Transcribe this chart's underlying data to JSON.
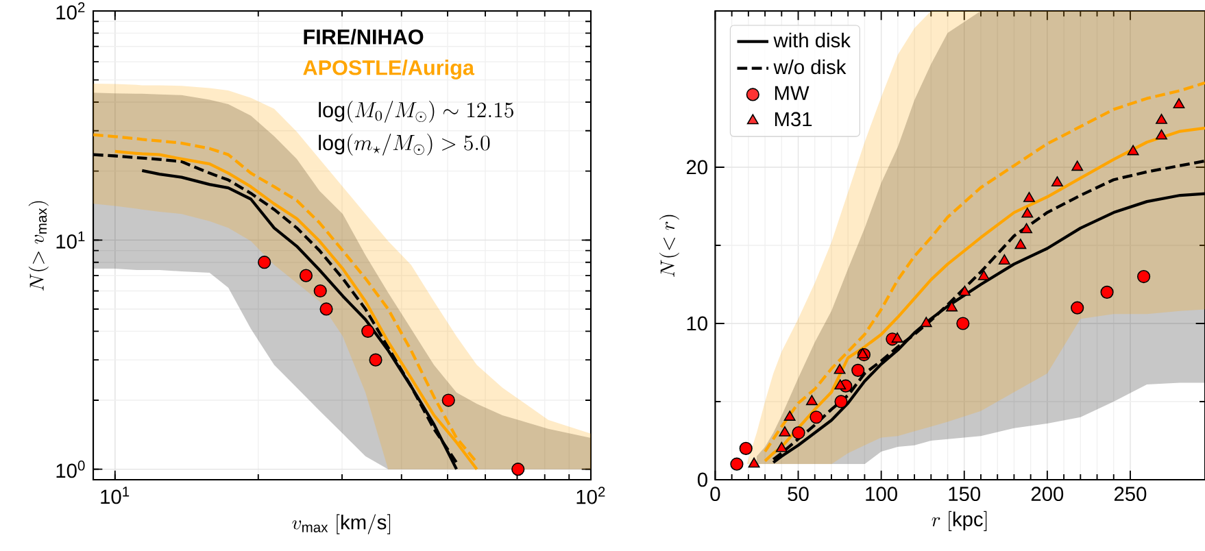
{
  "chart_data": [
    {
      "type": "line",
      "xlabel": "v_\\mathrm{max}\\ \\mathrm{[km/s]}",
      "ylabel": "N(>v_\\mathrm{max})",
      "log": "xy",
      "grid": true,
      "legend": false,
      "xlim": [
        9.0,
        100
      ],
      "ylim": [
        0.9,
        100
      ],
      "xticks": [
        {
          "value": 10,
          "label": "10$^{1}$"
        },
        {
          "value": 100,
          "label": "10$^{2}$"
        }
      ],
      "yticks": [
        {
          "value": 1,
          "label": "10$^{0}$"
        },
        {
          "value": 10,
          "label": "10$^{1}$"
        },
        {
          "value": 100,
          "label": "10$^{2}$"
        }
      ],
      "annotations": [
        "FIRE/NIHAO",
        "APOSTLE/Auriga",
        "\\log(M_0/M_\\odot)\\sim 12.15",
        "\\log(m_\\star/M_\\odot)>5.0"
      ],
      "x": [
        9.0,
        10.0,
        11.1,
        11.4,
        12.4,
        13.8,
        15.8,
        17.3,
        19.3,
        21.6,
        24.1,
        26.9,
        30.1,
        33.6,
        37.5,
        41.9,
        46.8,
        52.2,
        57.6,
        65.2,
        81.4,
        100
      ],
      "series": [
        {
          "color": "#000000",
          "line_style": "solid",
          "values": [
            null,
            null,
            null,
            20.1,
            19.4,
            18.8,
            17.5,
            16.9,
            15.1,
            11.3,
            9.4,
            7.4,
            5.7,
            4.5,
            3.3,
            2.3,
            1.57,
            1.0,
            null,
            null,
            null,
            null
          ],
          "lower": [
            7.5,
            7.5,
            7.4,
            7.4,
            7.4,
            7.3,
            7.2,
            6.2,
            4.1,
            2.85,
            2.27,
            1.8,
            1.43,
            1.14,
            1.0,
            1.0,
            1.0,
            1.0,
            1.0,
            1.0,
            1.0,
            1.0
          ],
          "upper": [
            44.0,
            43.7,
            43.5,
            43.5,
            43.2,
            42.9,
            41.0,
            39.2,
            34.9,
            28.4,
            22.6,
            16.4,
            13.0,
            8.6,
            5.9,
            4.1,
            2.85,
            2.16,
            1.93,
            1.72,
            1.5,
            1.37
          ]
        },
        {
          "color": "#000000",
          "line_style": "dashed",
          "values": [
            23.6,
            23.3,
            22.9,
            22.8,
            22.5,
            22.0,
            19.6,
            18.3,
            16.0,
            13.6,
            11.3,
            9.0,
            6.8,
            5.0,
            3.4,
            2.3,
            1.5,
            1.07,
            null,
            null,
            null,
            null
          ]
        },
        {
          "color": "#ffa500",
          "line_style": "solid",
          "values": [
            null,
            24.4,
            23.9,
            23.8,
            23.6,
            22.6,
            21.5,
            19.6,
            17.1,
            14.4,
            12.4,
            9.9,
            7.5,
            5.4,
            3.6,
            2.5,
            1.72,
            1.31,
            1.0,
            null,
            null,
            null
          ],
          "lower": [
            14.4,
            14.1,
            13.7,
            13.6,
            13.3,
            13.0,
            12.1,
            11.3,
            9.9,
            7.8,
            6.5,
            5.4,
            3.8,
            2.16,
            1.0,
            1.0,
            1.0,
            1.0,
            1.0,
            1.0,
            1.0,
            1.0
          ],
          "upper": [
            48.2,
            48.0,
            47.6,
            47.4,
            47.4,
            47.1,
            46.1,
            45.0,
            41.8,
            37.4,
            29.7,
            22.6,
            17.1,
            13.0,
            9.9,
            7.8,
            5.4,
            3.8,
            2.85,
            2.27,
            1.64,
            1.43
          ]
        },
        {
          "color": "#ffa500",
          "line_style": "dashed",
          "values": [
            28.8,
            28.3,
            27.7,
            27.5,
            27.1,
            26.5,
            25.1,
            23.6,
            19.6,
            17.1,
            14.9,
            11.9,
            9.0,
            6.8,
            5.0,
            3.3,
            2.07,
            1.37,
            1.07,
            null,
            null,
            null
          ]
        },
        {
          "type": "scatter",
          "marker": "circle",
          "color": "#ff0000",
          "x": [
            20.6,
            25.2,
            27.0,
            27.8,
            34.0,
            35.3,
            50.2,
            70.3
          ],
          "values": [
            8,
            7,
            6,
            5,
            4,
            3,
            2,
            1
          ]
        }
      ]
    },
    {
      "type": "line",
      "xlabel": "r\\ \\mathrm{[kpc]}",
      "ylabel": "N(<r)",
      "grid": true,
      "legend": "top left",
      "xlim": [
        0,
        295
      ],
      "ylim": [
        0,
        30
      ],
      "xticks": [
        0,
        50,
        100,
        150,
        200,
        250
      ],
      "yticks": [
        0,
        10,
        20
      ],
      "x": [
        19,
        25,
        30,
        35,
        40,
        50,
        60,
        70,
        80,
        90,
        100,
        110,
        120,
        130,
        140,
        160,
        180,
        200,
        220,
        240,
        260,
        280,
        295
      ],
      "series": [
        {
          "name": "with disk",
          "color": "#000000",
          "line_style": "solid",
          "values": [
            null,
            null,
            null,
            1.1,
            1.5,
            2.2,
            3.0,
            3.8,
            4.9,
            6.3,
            7.4,
            8.3,
            9.4,
            10.3,
            11.1,
            12.5,
            13.8,
            14.8,
            16.1,
            17.1,
            17.8,
            18.2,
            18.3
          ],
          "lower": [
            null,
            1.0,
            1.0,
            1.0,
            1.0,
            1.0,
            1.0,
            1.0,
            1.0,
            1.0,
            1.8,
            2.1,
            2.2,
            2.5,
            2.6,
            2.8,
            3.3,
            3.6,
            4.0,
            5.0,
            6.1,
            6.2,
            6.2
          ],
          "upper": [
            null,
            1.5,
            2.1,
            3.0,
            4.1,
            6.5,
            8.8,
            10.8,
            13.5,
            16.1,
            19.0,
            21.3,
            24.3,
            26.6,
            28.6,
            30,
            30,
            30,
            30,
            30,
            30,
            30,
            30
          ]
        },
        {
          "name": "w/o disk",
          "color": "#000000",
          "line_style": "dashed",
          "values": [
            null,
            null,
            null,
            1.3,
            1.7,
            2.6,
            3.5,
            4.5,
            5.4,
            6.8,
            7.6,
            8.5,
            9.3,
            10.2,
            11.2,
            13.3,
            15.6,
            17.1,
            18.2,
            19.2,
            19.7,
            20.1,
            20.4
          ]
        },
        {
          "color": "#ffa500",
          "line_style": "solid",
          "values": [
            null,
            null,
            1.2,
            1.7,
            2.1,
            3.3,
            4.5,
            5.6,
            7.8,
            8.5,
            9.3,
            10.4,
            11.6,
            12.8,
            13.8,
            15.5,
            17.1,
            18.1,
            19.3,
            20.5,
            21.6,
            22.3,
            22.5
          ],
          "lower": [
            1.0,
            1.0,
            1.0,
            1.0,
            1.0,
            1.0,
            1.0,
            1.0,
            1.7,
            2.2,
            2.7,
            2.8,
            3.1,
            3.4,
            3.7,
            4.4,
            5.6,
            6.8,
            10.3,
            10.6,
            10.6,
            10.8,
            10.9
          ],
          "upper": [
            1.0,
            3.0,
            5.0,
            6.8,
            8.2,
            10.3,
            12.6,
            15.2,
            18.4,
            21.6,
            24.5,
            27.2,
            28.9,
            30,
            30,
            30,
            30,
            30,
            30,
            30,
            30,
            30,
            30
          ]
        },
        {
          "color": "#ffa500",
          "line_style": "dashed",
          "values": [
            null,
            null,
            1.8,
            2.6,
            3.4,
            4.9,
            5.8,
            7.1,
            8.2,
            9.3,
            10.9,
            12.8,
            14.3,
            15.5,
            16.8,
            18.7,
            20.1,
            21.5,
            22.6,
            23.7,
            24.4,
            24.9,
            25.4
          ]
        },
        {
          "name": "MW",
          "type": "scatter",
          "marker": "circle",
          "color": "#ff0000",
          "x": [
            13.0,
            18.5,
            50.2,
            60.9,
            75.8,
            78.6,
            86.0,
            89.6,
            106.7,
            149.2,
            218.1,
            236.0,
            258.1
          ],
          "values": [
            1,
            2,
            3,
            4,
            5,
            6,
            7,
            8,
            9,
            10,
            11,
            12,
            13
          ]
        },
        {
          "name": "M31",
          "type": "scatter",
          "marker": "triangle",
          "color": "#ff0000",
          "x": [
            23.4,
            40.0,
            41.9,
            44.9,
            58.2,
            75.3,
            75.0,
            88.8,
            109.7,
            127.1,
            142.5,
            150.3,
            161.8,
            174.2,
            183.9,
            187.5,
            188.0,
            189.1,
            206.0,
            218.1,
            251.7,
            268.8,
            268.8,
            279.3
          ],
          "values": [
            1,
            2,
            3,
            4,
            5,
            6,
            7,
            8,
            9,
            10,
            11,
            12,
            13,
            14,
            15,
            16,
            17,
            18,
            19,
            20,
            21,
            22,
            23,
            24
          ]
        }
      ]
    }
  ]
}
